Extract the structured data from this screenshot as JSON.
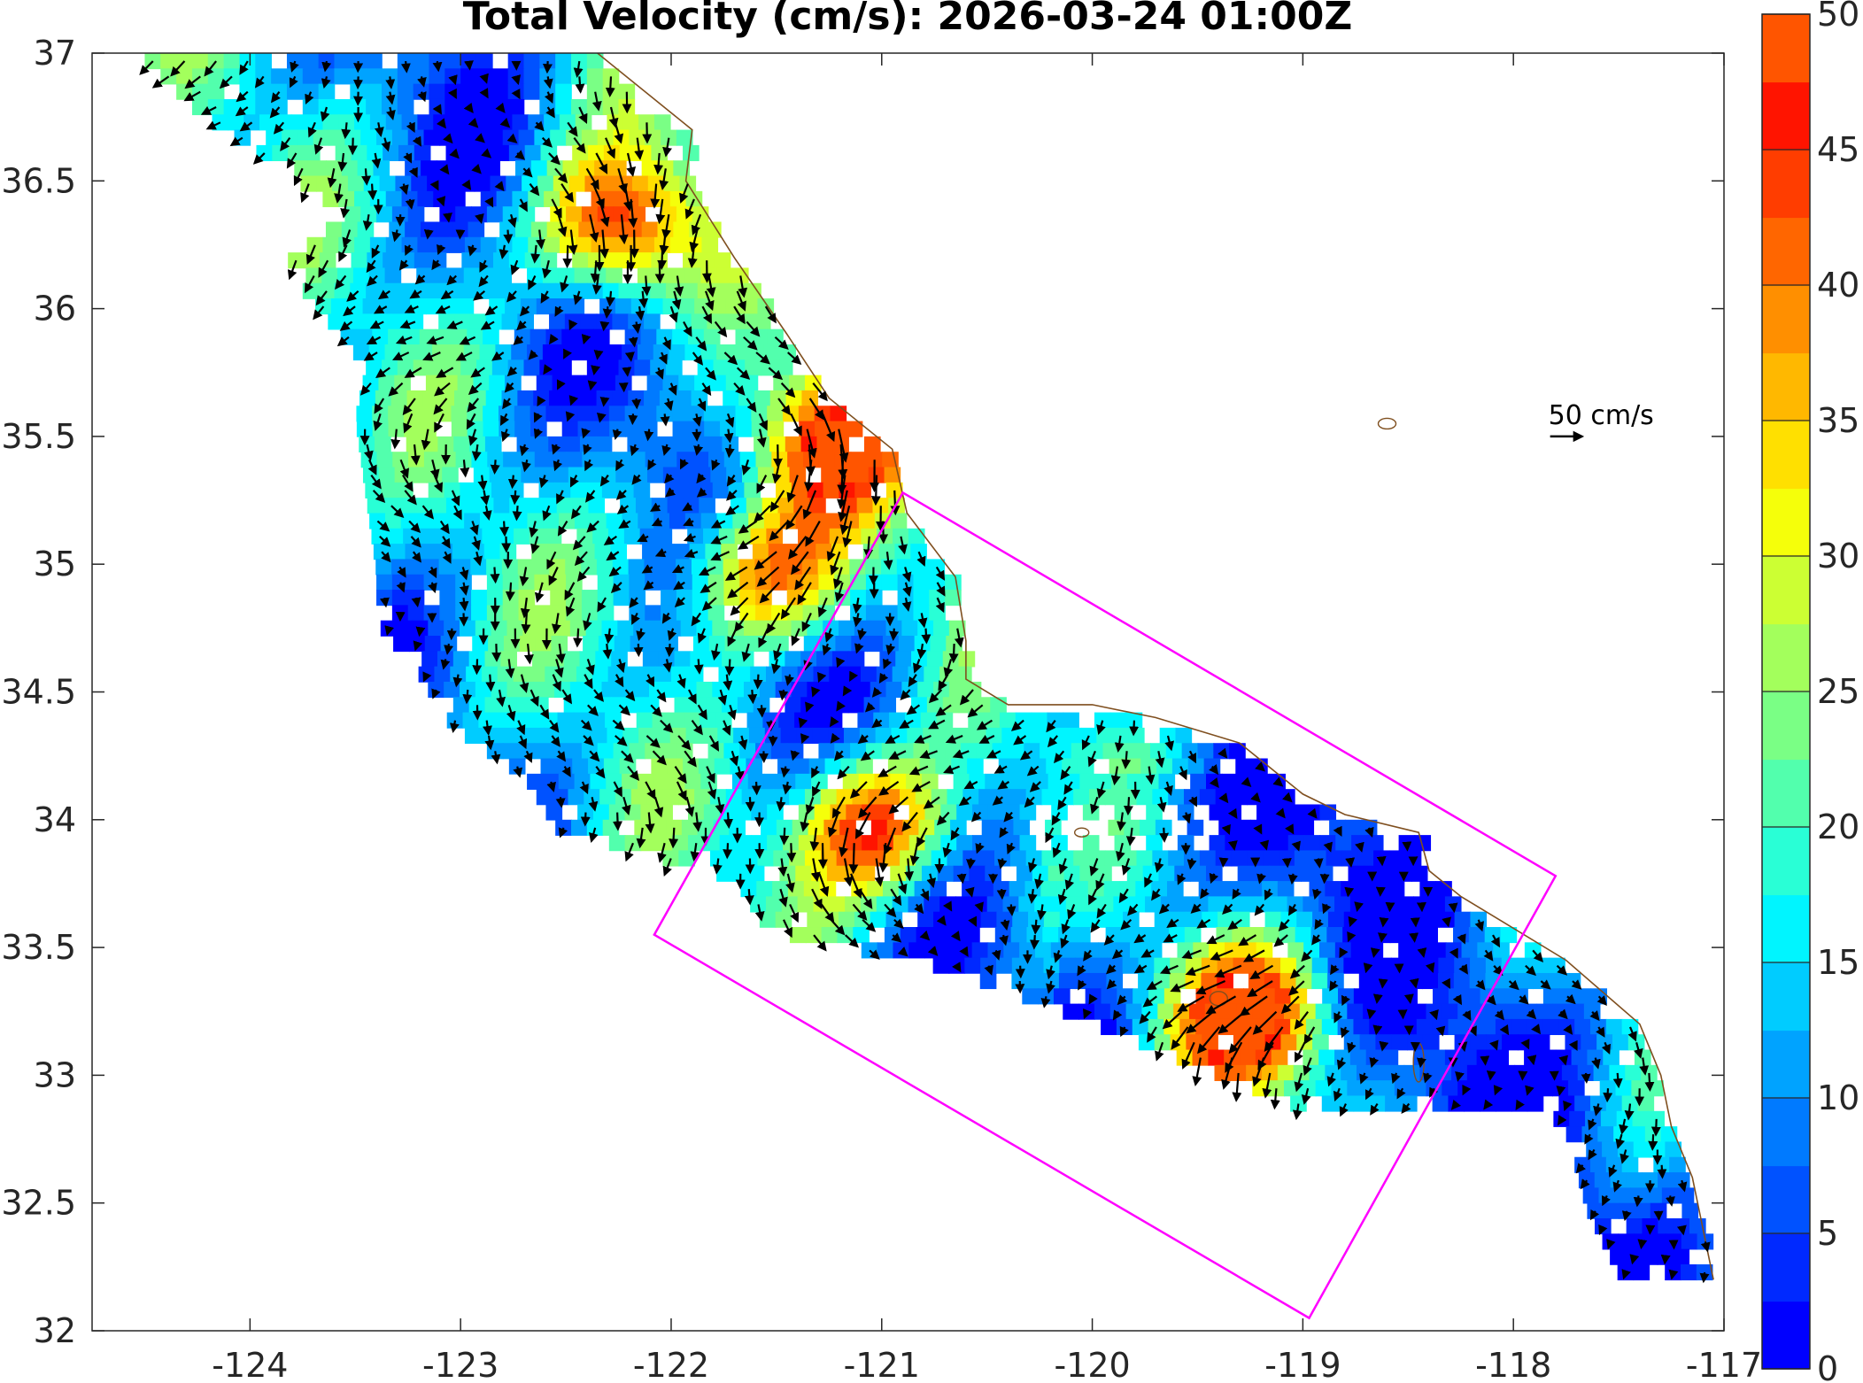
{
  "chart_data": {
    "type": "map-vector-field",
    "title": "Total Velocity (cm/s): 2026-03-24 01:00Z",
    "x_axis": {
      "range": [
        -124.75,
        -117
      ],
      "ticks": [
        -124,
        -123,
        -122,
        -121,
        -120,
        -119,
        -118,
        -117
      ],
      "tick_labels": [
        "-124",
        "-123",
        "-122",
        "-121",
        "-120",
        "-119",
        "-118",
        "-117"
      ]
    },
    "y_axis": {
      "range": [
        32,
        37
      ],
      "ticks": [
        32,
        32.5,
        33,
        33.5,
        34,
        34.5,
        35,
        35.5,
        36,
        36.5,
        37
      ],
      "tick_labels": [
        "32",
        "32.5",
        "33",
        "33.5",
        "34",
        "34.5",
        "35",
        "35.5",
        "36",
        "36.5",
        "37"
      ]
    },
    "colorbar": {
      "range": [
        0,
        50
      ],
      "step": 2.5,
      "ticks": [
        0,
        5,
        10,
        15,
        20,
        25,
        30,
        35,
        40,
        45,
        50
      ],
      "tick_labels": [
        "0",
        "5",
        "10",
        "15",
        "20",
        "25",
        "30",
        "35",
        "40",
        "45",
        "50"
      ],
      "colors": [
        "#0000ff",
        "#0029ff",
        "#0052ff",
        "#007aff",
        "#00a3ff",
        "#00ccff",
        "#00f5ff",
        "#29ffd6",
        "#52ffad",
        "#7aff85",
        "#a3ff5c",
        "#ccff33",
        "#f5ff0a",
        "#ffe000",
        "#ffb800",
        "#ff8f00",
        "#ff6600",
        "#ff3d00",
        "#ff1400",
        "#ff5500"
      ]
    },
    "scale_arrow": {
      "label": "50 cm/s",
      "lon": -117.75,
      "lat": 35.5
    },
    "study_box": {
      "color": "#ff00ff",
      "corners": [
        [
          -120.9,
          35.28
        ],
        [
          -117.8,
          33.78
        ],
        [
          -118.97,
          32.05
        ],
        [
          -122.08,
          33.55
        ]
      ]
    },
    "coastline_color": "#7f4f1f",
    "high_speed_regions": [
      {
        "lon": -122.3,
        "lat": 36.35,
        "speed": 47
      },
      {
        "lon": -121.1,
        "lat": 34.0,
        "speed": 49
      },
      {
        "lon": -119.3,
        "lat": 33.25,
        "speed": 49
      },
      {
        "lon": -121.6,
        "lat": 35.0,
        "speed": 44
      },
      {
        "lon": -121.3,
        "lat": 35.5,
        "speed": 42
      }
    ],
    "flow_direction": "generally southward/south-eastward along the California coast"
  }
}
